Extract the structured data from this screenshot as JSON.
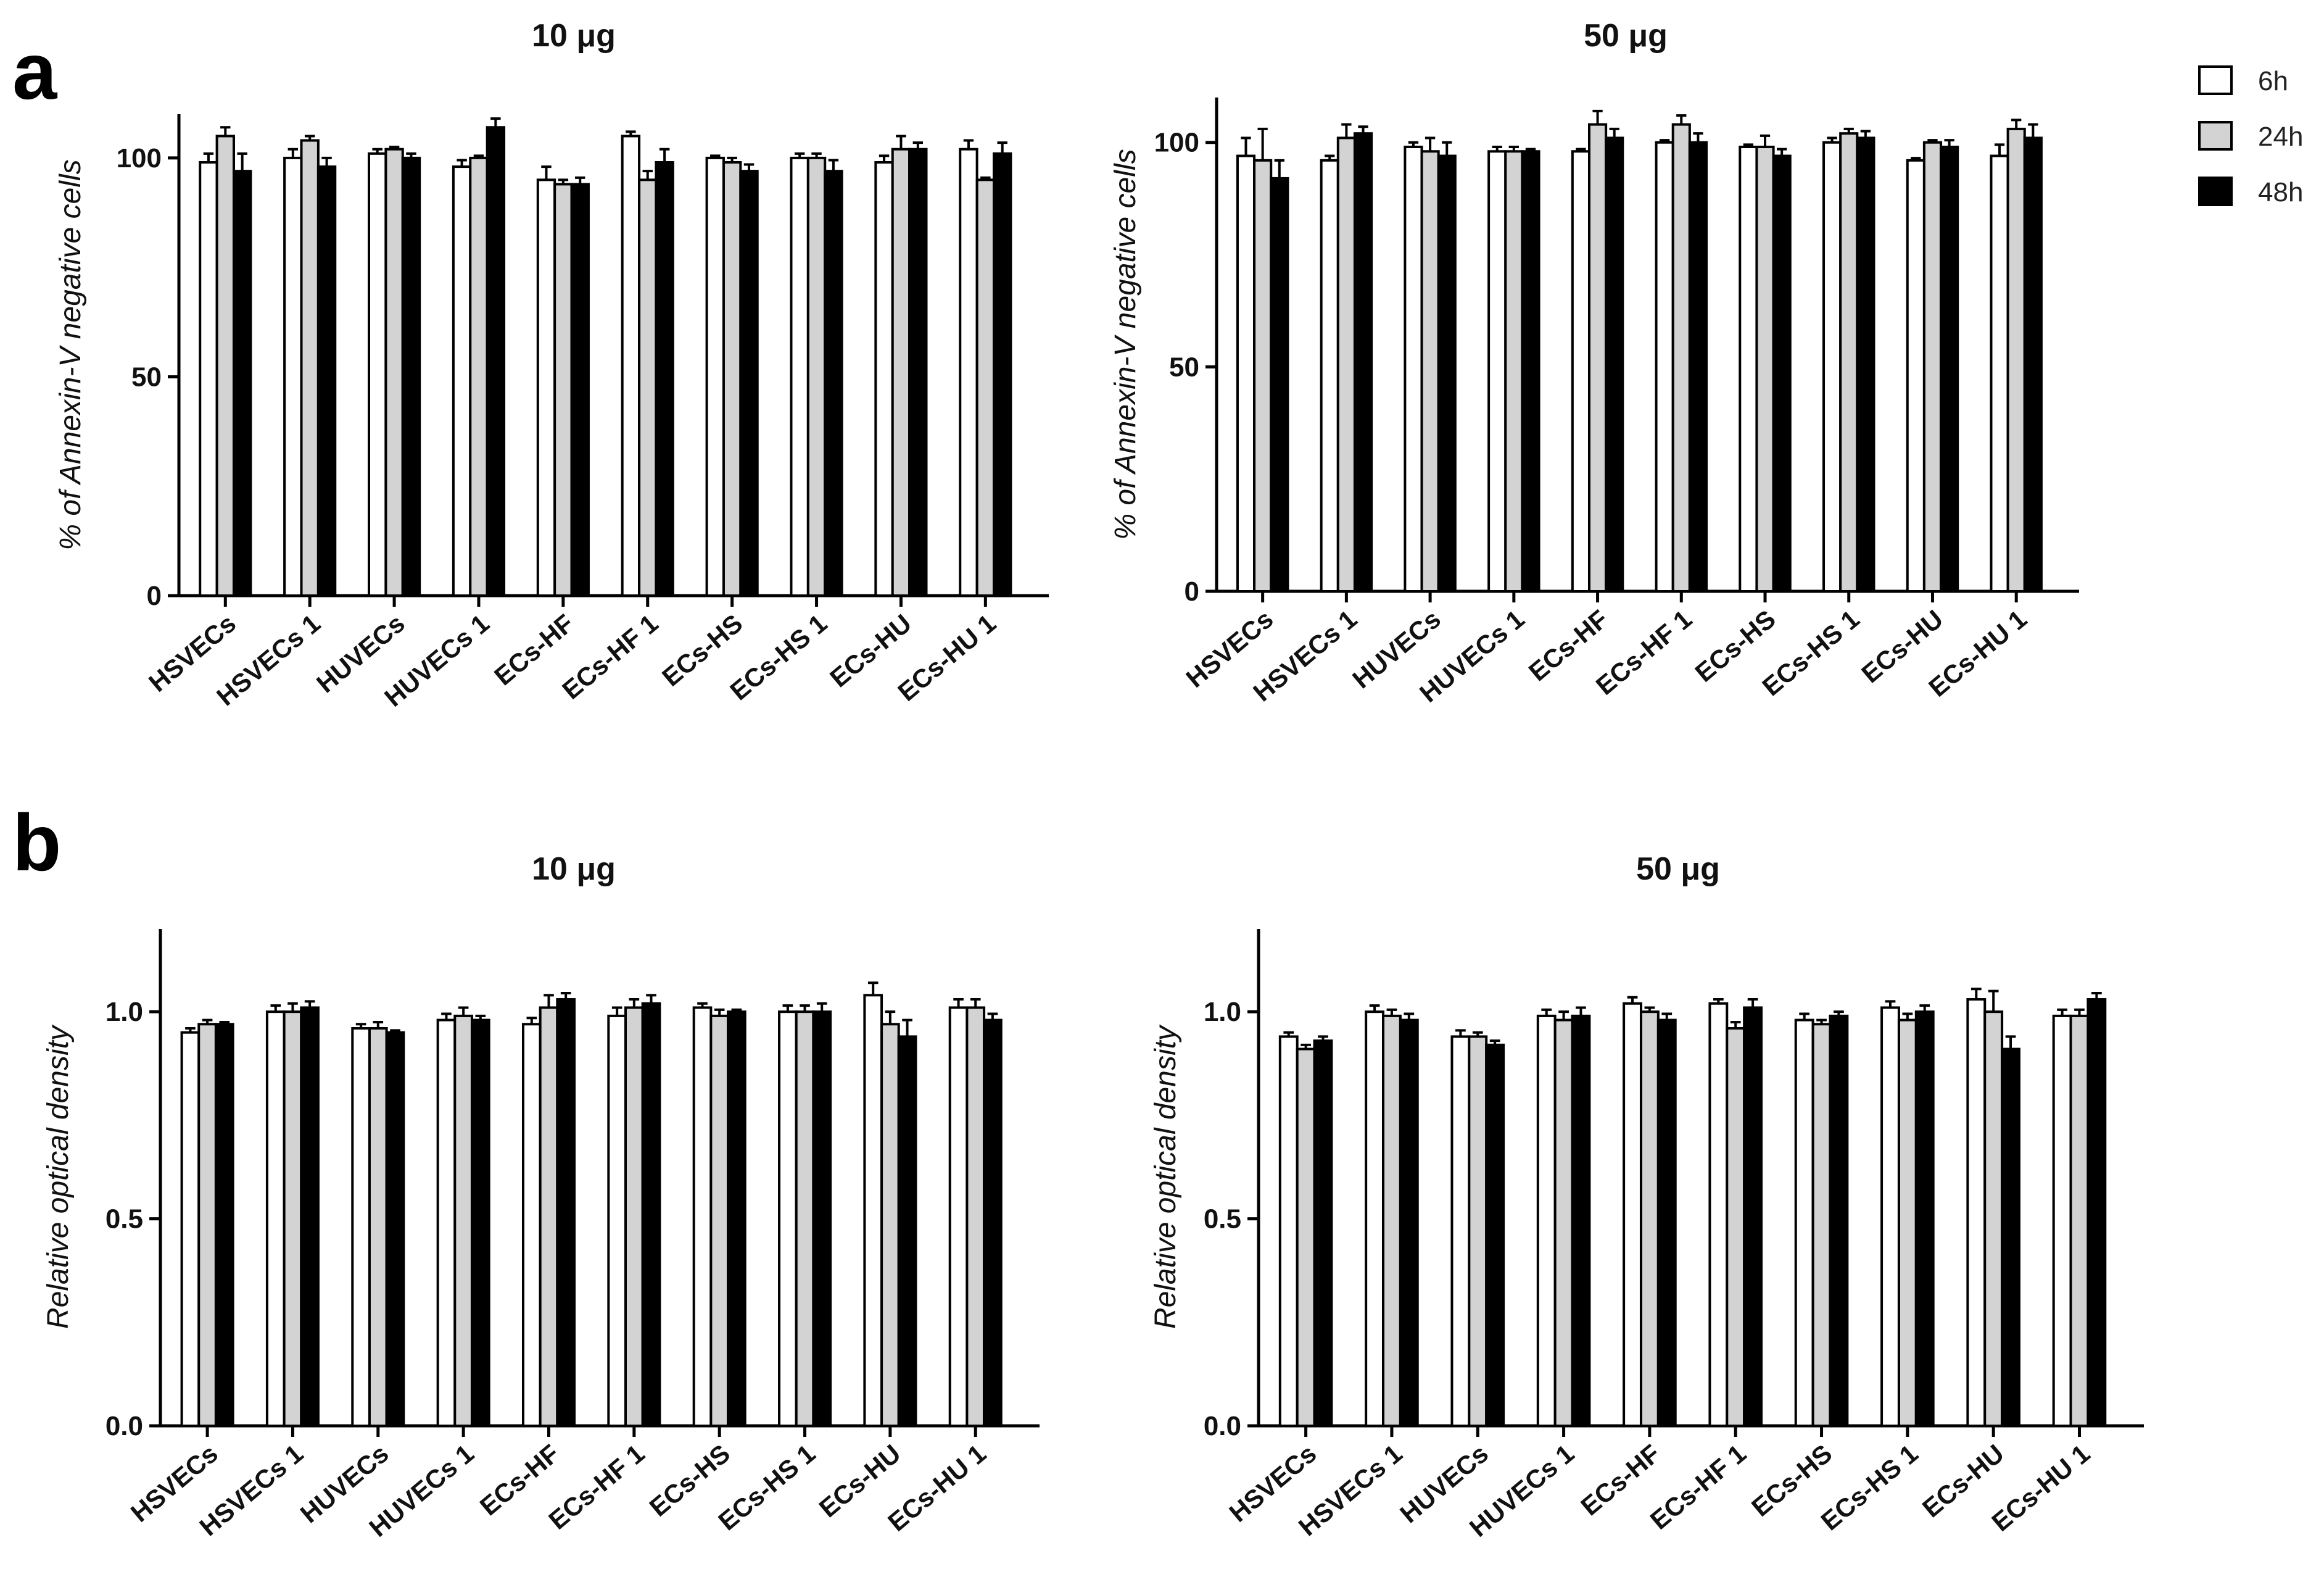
{
  "panels": {
    "a": "a",
    "b": "b"
  },
  "legend": [
    {
      "label": "6h",
      "color": "#ffffff"
    },
    {
      "label": "24h",
      "color": "#d3d3d3"
    },
    {
      "label": "48h",
      "color": "#000000"
    }
  ],
  "chart_data": [
    {
      "id": "a-10",
      "type": "bar",
      "title": "10 μg",
      "ylabel": "% of Annexin-V negative cells",
      "ylim": [
        0,
        110
      ],
      "yticks": [
        0,
        50,
        100
      ],
      "categories": [
        "HSVECs",
        "HSVECs 1",
        "HUVECs",
        "HUVECs 1",
        "ECs-HF",
        "ECs-HF 1",
        "ECs-HS",
        "ECs-HS 1",
        "ECs-HU",
        "ECs-HU 1"
      ],
      "series": [
        {
          "name": "6h",
          "values": [
            99,
            100,
            101,
            98,
            95,
            105,
            100,
            100,
            99,
            102
          ],
          "errors": [
            2,
            2,
            1,
            1.5,
            3,
            1,
            0.5,
            1,
            1.5,
            2
          ]
        },
        {
          "name": "24h",
          "values": [
            105,
            104,
            102,
            100,
            94,
            95,
            99,
            100,
            102,
            95
          ],
          "errors": [
            2,
            1,
            0.5,
            0.5,
            1,
            2,
            1,
            1,
            3,
            0.5
          ]
        },
        {
          "name": "48h",
          "values": [
            97,
            98,
            100,
            107,
            94,
            99,
            97,
            97,
            102,
            101
          ],
          "errors": [
            4,
            2,
            1,
            2,
            1.5,
            3,
            1.5,
            2.5,
            1.5,
            2.5
          ]
        }
      ]
    },
    {
      "id": "a-50",
      "type": "bar",
      "title": "50 μg",
      "ylabel": "% of Annexin-V negative cells",
      "ylim": [
        0,
        110
      ],
      "yticks": [
        0,
        50,
        100
      ],
      "categories": [
        "HSVECs",
        "HSVECs 1",
        "HUVECs",
        "HUVECs 1",
        "ECs-HF",
        "ECs-HF 1",
        "ECs-HS",
        "ECs-HS 1",
        "ECs-HU",
        "ECs-HU 1"
      ],
      "series": [
        {
          "name": "6h",
          "values": [
            97,
            96,
            99,
            98,
            98,
            100,
            99,
            100,
            96,
            97
          ],
          "errors": [
            4,
            1,
            1,
            1,
            0.5,
            0.5,
            0.5,
            1,
            0.5,
            2.5
          ]
        },
        {
          "name": "24h",
          "values": [
            96,
            101,
            98,
            98,
            104,
            104,
            99,
            102,
            100,
            103
          ],
          "errors": [
            7,
            3,
            3,
            1,
            3,
            2,
            2.5,
            1,
            0.5,
            2
          ]
        },
        {
          "name": "48h",
          "values": [
            92,
            102,
            97,
            98,
            101,
            100,
            97,
            101,
            99,
            101
          ],
          "errors": [
            4,
            1.5,
            3,
            0.5,
            2,
            2,
            1.5,
            1.5,
            1.5,
            3
          ]
        }
      ]
    },
    {
      "id": "b-10",
      "type": "bar",
      "title": "10 μg",
      "ylabel": "Relative optical density",
      "ylim": [
        0,
        1.2
      ],
      "yticks": [
        0.0,
        0.5,
        1.0
      ],
      "yticklabels": [
        "0.0",
        "0.5",
        "1.0"
      ],
      "categories": [
        "HSVECs",
        "HSVECs 1",
        "HUVECs",
        "HUVECs 1",
        "ECs-HF",
        "ECs-HF 1",
        "ECs-HS",
        "ECs-HS 1",
        "ECs-HU",
        "ECs-HU 1"
      ],
      "series": [
        {
          "name": "6h",
          "values": [
            0.95,
            1.0,
            0.96,
            0.98,
            0.97,
            0.99,
            1.01,
            1.0,
            1.04,
            1.01
          ],
          "errors": [
            0.01,
            0.015,
            0.01,
            0.015,
            0.015,
            0.02,
            0.01,
            0.015,
            0.03,
            0.02
          ]
        },
        {
          "name": "24h",
          "values": [
            0.97,
            1.0,
            0.96,
            0.99,
            1.01,
            1.01,
            0.99,
            1.0,
            0.97,
            1.01
          ],
          "errors": [
            0.01,
            0.02,
            0.015,
            0.02,
            0.03,
            0.02,
            0.015,
            0.015,
            0.03,
            0.02
          ]
        },
        {
          "name": "48h",
          "values": [
            0.97,
            1.01,
            0.95,
            0.98,
            1.03,
            1.02,
            1.0,
            1.0,
            0.94,
            0.98
          ],
          "errors": [
            0.005,
            0.015,
            0.005,
            0.01,
            0.015,
            0.02,
            0.005,
            0.02,
            0.04,
            0.015
          ]
        }
      ]
    },
    {
      "id": "b-50",
      "type": "bar",
      "title": "50 μg",
      "ylabel": "Relative optical density",
      "ylim": [
        0,
        1.2
      ],
      "yticks": [
        0.0,
        0.5,
        1.0
      ],
      "yticklabels": [
        "0.0",
        "0.5",
        "1.0"
      ],
      "categories": [
        "HSVECs",
        "HSVECs 1",
        "HUVECs",
        "HUVECs 1",
        "ECs-HF",
        "ECs-HF 1",
        "ECs-HS",
        "ECs-HS 1",
        "ECs-HU",
        "ECs-HU 1"
      ],
      "series": [
        {
          "name": "6h",
          "values": [
            0.94,
            1.0,
            0.94,
            0.99,
            1.02,
            1.02,
            0.98,
            1.01,
            1.03,
            0.99
          ],
          "errors": [
            0.01,
            0.015,
            0.015,
            0.015,
            0.015,
            0.01,
            0.015,
            0.015,
            0.025,
            0.015
          ]
        },
        {
          "name": "24h",
          "values": [
            0.91,
            0.99,
            0.94,
            0.98,
            1.0,
            0.96,
            0.97,
            0.98,
            1.0,
            0.99
          ],
          "errors": [
            0.01,
            0.015,
            0.01,
            0.02,
            0.01,
            0.015,
            0.01,
            0.015,
            0.05,
            0.015
          ]
        },
        {
          "name": "48h",
          "values": [
            0.93,
            0.98,
            0.92,
            0.99,
            0.98,
            1.01,
            0.99,
            1.0,
            0.91,
            1.03
          ],
          "errors": [
            0.01,
            0.015,
            0.01,
            0.02,
            0.015,
            0.02,
            0.01,
            0.015,
            0.03,
            0.015
          ]
        }
      ]
    }
  ]
}
